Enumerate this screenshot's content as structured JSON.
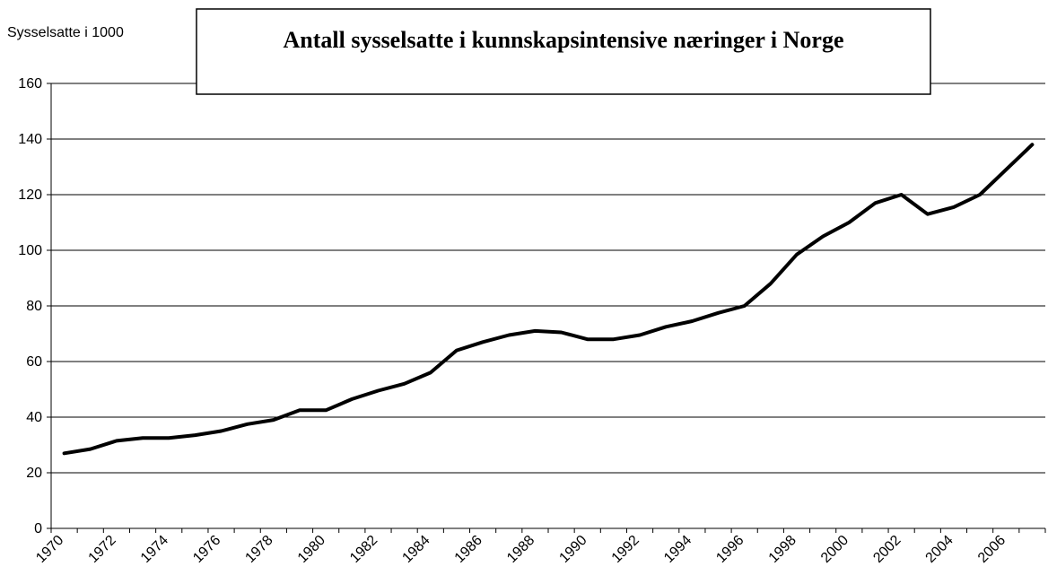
{
  "chart_data": {
    "type": "line",
    "title": "Antall sysselsatte i kunnskapsintensive næringer i Norge",
    "y_label": "Sysselsatte i 1000",
    "categories": [
      "1970",
      null,
      "1972",
      null,
      "1974",
      null,
      "1976",
      null,
      "1978",
      null,
      "1980",
      null,
      "1982",
      null,
      "1984",
      null,
      "1986",
      null,
      "1988",
      null,
      "1990",
      null,
      "1992",
      null,
      "1994",
      null,
      "1996",
      null,
      "1998",
      null,
      "2000",
      null,
      "2002",
      null,
      "2004",
      null,
      "2006",
      null
    ],
    "series": [
      {
        "color": "#000000",
        "values": [
          27,
          28.5,
          31.5,
          32.5,
          32.5,
          33.5,
          35,
          37.5,
          39,
          42.5,
          42.5,
          46.5,
          49.5,
          52,
          56,
          64,
          67,
          69.5,
          71,
          70.5,
          68,
          68,
          69.5,
          72.5,
          74.5,
          77.5,
          80,
          88,
          98.5,
          105,
          110,
          117,
          120,
          113,
          115.5,
          120,
          129,
          138
        ]
      }
    ],
    "ylim": [
      0,
      160
    ],
    "yticks": [
      0,
      20,
      40,
      60,
      80,
      100,
      120,
      140,
      160
    ],
    "grid": true
  }
}
